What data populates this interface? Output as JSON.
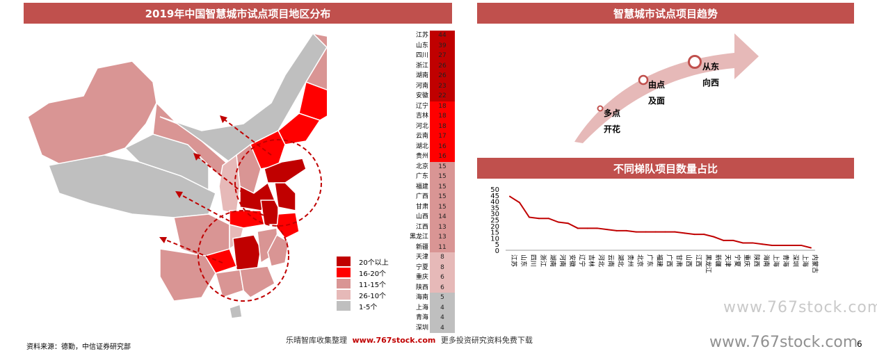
{
  "map_title": "2019年中国智慧城市试点项目地区分布",
  "trend_title": "智慧城市试点项目趋势",
  "line_title": "不同梯队项目数量占比",
  "colors": {
    "banner": "#c0504d",
    "tier1": "#c00000",
    "tier2": "#ff0000",
    "tier3": "#d99594",
    "tier4": "#e6b9b8",
    "tier5": "#bfbfbf",
    "line": "#c00000"
  },
  "rank_list": [
    {
      "name": "江苏",
      "value": "44",
      "tier": "tier1"
    },
    {
      "name": "山东",
      "value": "39",
      "tier": "tier1"
    },
    {
      "name": "四川",
      "value": "27",
      "tier": "tier1"
    },
    {
      "name": "浙江",
      "value": "26",
      "tier": "tier1"
    },
    {
      "name": "湖南",
      "value": "26",
      "tier": "tier1"
    },
    {
      "name": "河南",
      "value": "23",
      "tier": "tier1"
    },
    {
      "name": "安徽",
      "value": "22",
      "tier": "tier1"
    },
    {
      "name": "辽宁",
      "value": "18",
      "tier": "tier2"
    },
    {
      "name": "吉林",
      "value": "18",
      "tier": "tier2"
    },
    {
      "name": "河北",
      "value": "18",
      "tier": "tier2"
    },
    {
      "name": "云南",
      "value": "17",
      "tier": "tier2"
    },
    {
      "name": "湖北",
      "value": "16",
      "tier": "tier2"
    },
    {
      "name": "贵州",
      "value": "16",
      "tier": "tier2"
    },
    {
      "name": "北京",
      "value": "15",
      "tier": "tier3"
    },
    {
      "name": "广东",
      "value": "15",
      "tier": "tier3"
    },
    {
      "name": "福建",
      "value": "15",
      "tier": "tier3"
    },
    {
      "name": "广西",
      "value": "15",
      "tier": "tier3"
    },
    {
      "name": "甘肃",
      "value": "15",
      "tier": "tier3"
    },
    {
      "name": "山西",
      "value": "14",
      "tier": "tier3"
    },
    {
      "name": "江西",
      "value": "13",
      "tier": "tier3"
    },
    {
      "name": "黑龙江",
      "value": "13",
      "tier": "tier3"
    },
    {
      "name": "新疆",
      "value": "11",
      "tier": "tier3"
    },
    {
      "name": "天津",
      "value": "8",
      "tier": "tier4"
    },
    {
      "name": "宁夏",
      "value": "8",
      "tier": "tier4"
    },
    {
      "name": "重庆",
      "value": "6",
      "tier": "tier4"
    },
    {
      "name": "陕西",
      "value": "6",
      "tier": "tier4"
    },
    {
      "name": "海南",
      "value": "5",
      "tier": "tier5"
    },
    {
      "name": "上海",
      "value": "4",
      "tier": "tier5"
    },
    {
      "name": "青海",
      "value": "4",
      "tier": "tier5"
    },
    {
      "name": "深圳",
      "value": "4",
      "tier": "tier5"
    }
  ],
  "legend": [
    {
      "label": "20个以上",
      "tier": "tier1"
    },
    {
      "label": "16-20个",
      "tier": "tier2"
    },
    {
      "label": "11-15个",
      "tier": "tier3"
    },
    {
      "label": "26-10个",
      "tier": "tier4"
    },
    {
      "label": "1-5个",
      "tier": "tier5"
    }
  ],
  "trend_labels": [
    {
      "line1": "多点",
      "line2": "开花"
    },
    {
      "line1": "由点",
      "line2": "及面"
    },
    {
      "line1": "从东",
      "line2": "向西"
    }
  ],
  "chart_data": {
    "type": "line",
    "title": "不同梯队项目数量占比",
    "categories": [
      "江苏",
      "山东",
      "四川",
      "浙江",
      "湖南",
      "河南",
      "安徽",
      "辽宁",
      "吉林",
      "河北",
      "云南",
      "湖北",
      "贵州",
      "北京",
      "广东",
      "福建",
      "广西",
      "甘肃",
      "山西",
      "江西",
      "黑龙江",
      "新疆",
      "天津",
      "宁夏",
      "重庆",
      "陕西",
      "海南",
      "上海",
      "青海",
      "深圳",
      "上海",
      "内蒙古"
    ],
    "series": [
      {
        "values": [
          44,
          39,
          27,
          26,
          26,
          23,
          22,
          18,
          18,
          18,
          17,
          16,
          16,
          15,
          15,
          15,
          15,
          15,
          14,
          13,
          13,
          11,
          8,
          8,
          6,
          6,
          5,
          4,
          4,
          4,
          4,
          2
        ]
      }
    ],
    "ylim": [
      0,
      50
    ],
    "yticks": [
      0,
      5,
      10,
      15,
      20,
      25,
      30,
      35,
      40,
      45,
      50
    ],
    "grid": false
  },
  "source": "资料来源：德勤，中信证券研究部",
  "footer_left": "乐晴智库收集整理",
  "footer_url": "www.767stock.com",
  "footer_right": "更多投资研究资料免费下载",
  "watermark_1": "www.767stock.com",
  "watermark_2": "www.767stock.com",
  "page_number": "6"
}
